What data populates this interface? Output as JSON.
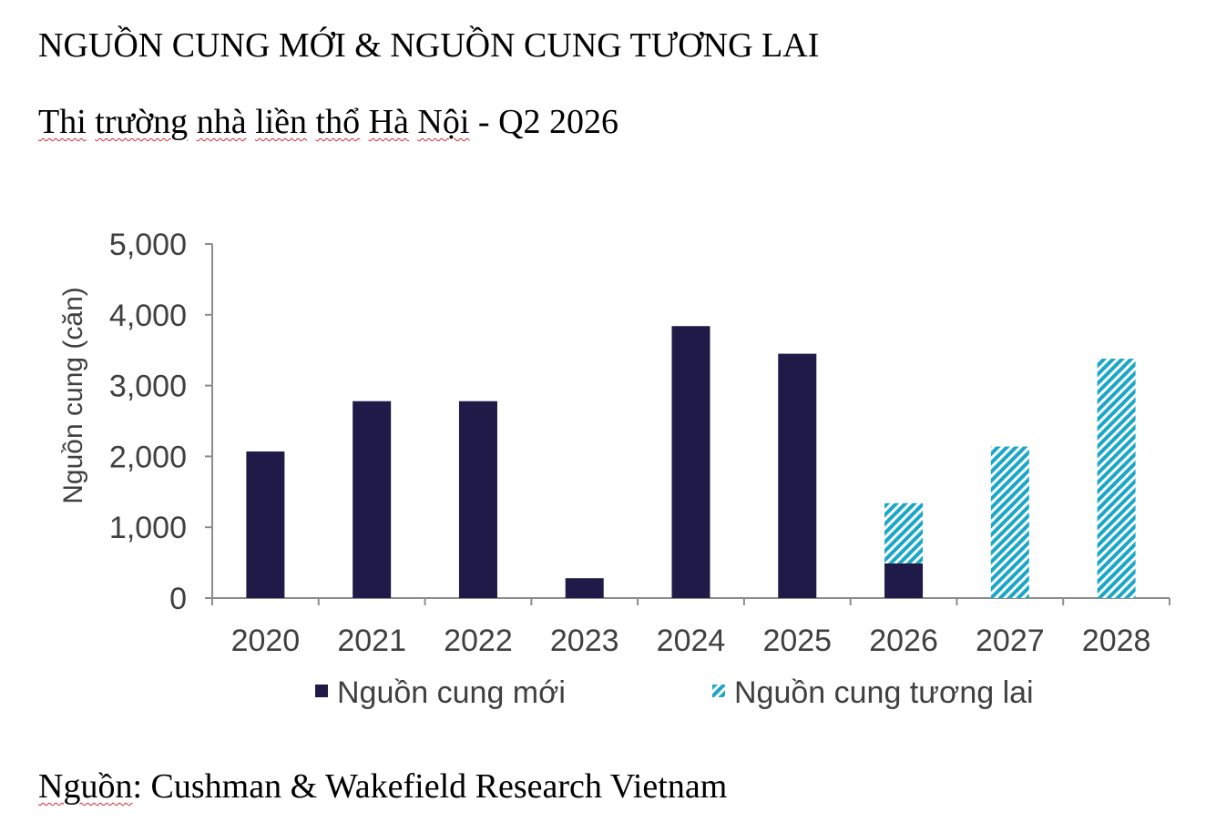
{
  "header": {
    "title": "NGUỒN CUNG MỚI & NGUỒN CUNG TƯƠNG LAI",
    "subtitle_words": [
      "Thi",
      "trường",
      "nhà",
      "liền",
      "thổ",
      "Hà",
      "Nội"
    ],
    "subtitle_suffix": " - Q2 2026"
  },
  "footer": {
    "source_word": "Nguồn",
    "source_rest": ": Cushman & Wakefield Research Vietnam"
  },
  "colors": {
    "new_supply": "#1f1a47",
    "future_supply": "#1aa7c7",
    "axis": "#8c8c8c",
    "text": "#404040"
  },
  "chart_data": {
    "type": "bar",
    "stacked": true,
    "categories": [
      "2020",
      "2021",
      "2022",
      "2023",
      "2024",
      "2025",
      "2026",
      "2027",
      "2028"
    ],
    "series": [
      {
        "name": "Nguồn cung mới",
        "values": [
          2070,
          2780,
          2780,
          280,
          3840,
          3450,
          490,
          0,
          0
        ]
      },
      {
        "name": "Nguồn cung tương lai",
        "values": [
          0,
          0,
          0,
          0,
          0,
          0,
          850,
          2140,
          3380
        ]
      }
    ],
    "ylabel": "Nguồn cung (căn)",
    "xlabel": "",
    "ylim": [
      0,
      5000
    ],
    "yticks": [
      "0",
      "1,000",
      "2,000",
      "3,000",
      "4,000",
      "5,000"
    ],
    "ytick_values": [
      0,
      1000,
      2000,
      3000,
      4000,
      5000
    ],
    "legend_position": "bottom",
    "grid": false
  }
}
